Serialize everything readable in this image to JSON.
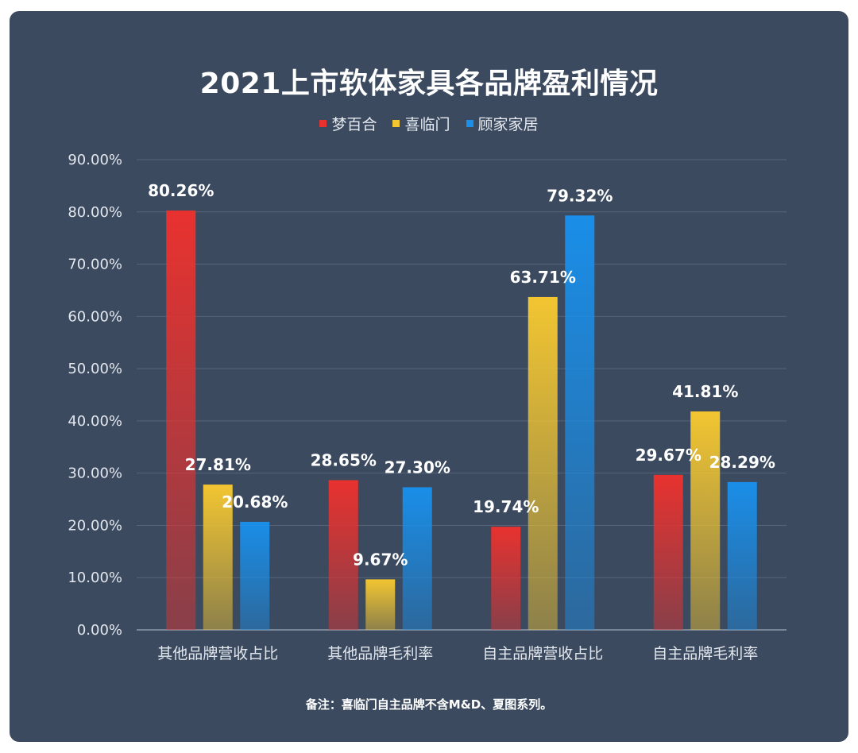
{
  "chart_data": {
    "type": "bar",
    "title": "2021上市软体家具各品牌盈利情况",
    "categories": [
      "其他品牌营收占比",
      "其他品牌毛利率",
      "自主品牌营收占比",
      "自主品牌毛利率"
    ],
    "series": [
      {
        "name": "梦百合",
        "color": "#e8322f",
        "values": [
          80.26,
          28.65,
          19.74,
          29.67
        ],
        "labels": [
          "80.26%",
          "28.65%",
          "19.74%",
          "29.67%"
        ]
      },
      {
        "name": "喜临门",
        "color": "#f2c531",
        "values": [
          27.81,
          9.67,
          63.71,
          41.81
        ],
        "labels": [
          "27.81%",
          "9.67%",
          "63.71%",
          "41.81%"
        ]
      },
      {
        "name": "顾家家居",
        "color": "#1a8ee8",
        "values": [
          20.68,
          27.3,
          79.32,
          28.29
        ],
        "labels": [
          "20.68%",
          "27.30%",
          "79.32%",
          "28.29%"
        ]
      }
    ],
    "ylim": [
      0,
      90
    ],
    "yticks": [
      "0.00%",
      "10.00%",
      "20.00%",
      "30.00%",
      "40.00%",
      "50.00%",
      "60.00%",
      "70.00%",
      "80.00%",
      "90.00%"
    ],
    "grid": true,
    "legend_position": "top-center",
    "note": "备注：喜临门自主品牌不含M&D、夏图系列。"
  }
}
